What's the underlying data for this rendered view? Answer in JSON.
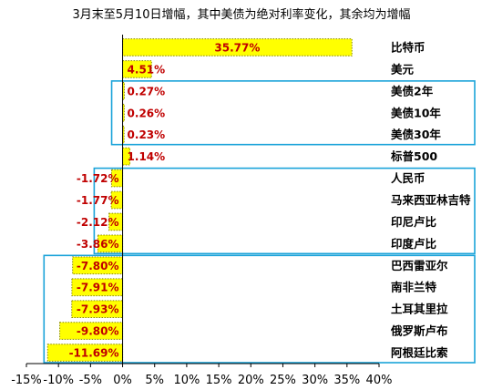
{
  "chart_data": {
    "type": "bar",
    "orientation": "horizontal",
    "title": "3月末至5月10日增幅，其中美债为绝对利率变化，其余均为增幅",
    "categories": [
      "比特币",
      "美元",
      "美债2年",
      "美债10年",
      "美债30年",
      "标普500",
      "人民币",
      "马来西亚林吉特",
      "印尼卢比",
      "印度卢比",
      "巴西雷亚尔",
      "南非兰特",
      "土耳其里拉",
      "俄罗斯卢布",
      "阿根廷比索"
    ],
    "values": [
      35.77,
      4.51,
      0.27,
      0.26,
      0.23,
      1.14,
      -1.72,
      -1.77,
      -2.12,
      -3.86,
      -7.8,
      -7.91,
      -7.93,
      -9.8,
      -11.69
    ],
    "data_labels": [
      "35.77%",
      "4.51%",
      "0.27%",
      "0.26%",
      "0.23%",
      "1.14%",
      "-1.72%",
      "-1.77%",
      "-2.12%",
      "-3.86%",
      "-7.80%",
      "-7.91%",
      "-7.93%",
      "-9.80%",
      "-11.69%"
    ],
    "xlim": [
      -15,
      40
    ],
    "x_ticks": [
      "-15%",
      "-10%",
      "-5%",
      "0%",
      "5%",
      "10%",
      "15%",
      "20%",
      "25%",
      "30%",
      "35%",
      "40%"
    ],
    "xlabel": "",
    "ylabel": "",
    "grid": false,
    "legend": "none",
    "groups": [
      [
        2,
        4
      ],
      [
        6,
        9
      ],
      [
        10,
        14
      ]
    ],
    "colors": {
      "bar": "#ffff00",
      "bar_border": "#8a8a00",
      "data_label": "#c00000",
      "group_box": "#1aa3d9",
      "axis": "#000000"
    }
  }
}
